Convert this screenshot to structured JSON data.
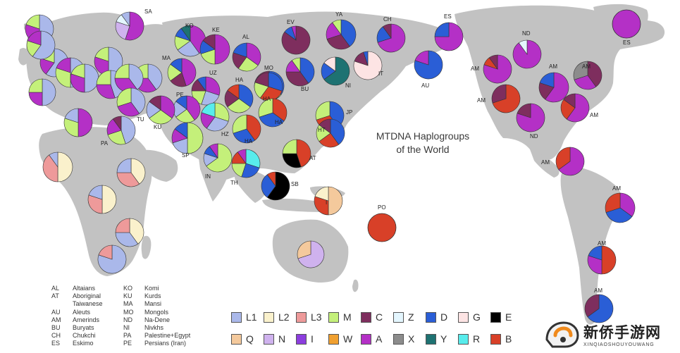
{
  "title": {
    "line1": "MTDNA Haplogroups",
    "line2": "of the World"
  },
  "colors": {
    "land": "#c2c2c2",
    "ocean": "#ffffff",
    "background": "#ffffff",
    "L1": "#aab8ea",
    "L2": "#faf1cc",
    "L3": "#ee9a9a",
    "M": "#c4f07a",
    "C": "#7e2e5e",
    "Z": "#e4f6fe",
    "D": "#2a5ed6",
    "G": "#fde4e4",
    "E": "#000000",
    "Q": "#f4c99c",
    "N": "#cfb2ee",
    "I": "#8c3ede",
    "W": "#f0a030",
    "A": "#b430c6",
    "X": "#8c8c8c",
    "Y": "#1e7272",
    "R": "#58ecec",
    "B": "#d84028"
  },
  "legend": {
    "row1": [
      {
        "code": "L1",
        "label": "L1"
      },
      {
        "code": "L2",
        "label": "L2"
      },
      {
        "code": "L3",
        "label": "L3"
      },
      {
        "code": "M",
        "label": "M"
      },
      {
        "code": "C",
        "label": "C"
      },
      {
        "code": "Z",
        "label": "Z"
      },
      {
        "code": "D",
        "label": "D"
      },
      {
        "code": "G",
        "label": "G"
      },
      {
        "code": "E",
        "label": "E"
      }
    ],
    "row2": [
      {
        "code": "Q",
        "label": "Q"
      },
      {
        "code": "N",
        "label": "N"
      },
      {
        "code": "I",
        "label": "I"
      },
      {
        "code": "W",
        "label": "W"
      },
      {
        "code": "A",
        "label": "A"
      },
      {
        "code": "X",
        "label": "X"
      },
      {
        "code": "Y",
        "label": "Y"
      },
      {
        "code": "R",
        "label": "R"
      },
      {
        "code": "B",
        "label": "B"
      }
    ]
  },
  "abbreviations": {
    "col1": [
      {
        "code": "AL",
        "name": "Altaians"
      },
      {
        "code": "AT",
        "name": "Aboriginal"
      },
      {
        "code": "",
        "name": "Taiwanese"
      },
      {
        "code": "AU",
        "name": "Aleuts"
      },
      {
        "code": "AM",
        "name": "Amerinds"
      },
      {
        "code": "BU",
        "name": "Buryats"
      },
      {
        "code": "CH",
        "name": "Chukchi"
      },
      {
        "code": "ES",
        "name": "Eskimo"
      }
    ],
    "col2": [
      {
        "code": "KO",
        "name": "Komi"
      },
      {
        "code": "KU",
        "name": "Kurds"
      },
      {
        "code": "MA",
        "name": "Mansi"
      },
      {
        "code": "MO",
        "name": "Mongols"
      },
      {
        "code": "ND",
        "name": "Na-Dene"
      },
      {
        "code": "NI",
        "name": "Nivkhs"
      },
      {
        "code": "PA",
        "name": "Palestine+Egypt"
      },
      {
        "code": "PE",
        "name": "Persians (Iran)"
      }
    ]
  },
  "populations": [
    {
      "label": "SA",
      "fractions": {
        "A": 0.55,
        "N": 0.25,
        "Z": 0.1,
        "L1": 0.1
      }
    },
    {
      "label": "KO",
      "fractions": {
        "A": 0.4,
        "L1": 0.25,
        "M": 0.15,
        "D": 0.1,
        "Y": 0.1
      }
    },
    {
      "label": "KE",
      "fractions": {
        "A": 0.5,
        "M": 0.2,
        "D": 0.15,
        "C": 0.15
      }
    },
    {
      "label": "AL",
      "fractions": {
        "A": 0.35,
        "M": 0.25,
        "C": 0.2,
        "D": 0.2
      }
    },
    {
      "label": "MA",
      "fractions": {
        "A": 0.45,
        "C": 0.2,
        "M": 0.2,
        "D": 0.15
      }
    },
    {
      "label": "UZ",
      "fractions": {
        "A": 0.3,
        "L1": 0.25,
        "M": 0.2,
        "C": 0.15,
        "D": 0.1
      }
    },
    {
      "label": "MO",
      "fractions": {
        "D": 0.35,
        "M": 0.3,
        "A": 0.2,
        "C": 0.15
      }
    },
    {
      "label": "BU",
      "fractions": {
        "D": 0.4,
        "C": 0.35,
        "A": 0.15,
        "M": 0.1
      }
    },
    {
      "label": "EV",
      "fractions": {
        "C": 0.85,
        "D": 0.1,
        "A": 0.05
      }
    },
    {
      "label": "YA",
      "fractions": {
        "D": 0.4,
        "C": 0.3,
        "A": 0.2,
        "M": 0.1
      }
    },
    {
      "label": "NI",
      "fractions": {
        "Y": 0.65,
        "D": 0.2,
        "G": 0.15
      }
    },
    {
      "label": "IT",
      "fractions": {
        "G": 0.8,
        "C": 0.15,
        "D": 0.05
      }
    },
    {
      "label": "CH",
      "fractions": {
        "A": 0.7,
        "D": 0.2,
        "C": 0.1
      }
    },
    {
      "label": "AU",
      "fractions": {
        "D": 0.8,
        "A": 0.2
      }
    },
    {
      "label": "ES",
      "fractions": {
        "A": 0.75,
        "D": 0.25
      }
    },
    {
      "label": "ND",
      "fractions": {
        "A": 0.9,
        "Z": 0.1
      }
    },
    {
      "label": "ES",
      "fractions": {
        "A": 1.0
      }
    },
    {
      "label": "PE",
      "fractions": {
        "A": 0.4,
        "M": 0.25,
        "L1": 0.2,
        "D": 0.15
      }
    },
    {
      "label": "KU",
      "fractions": {
        "A": 0.35,
        "M": 0.3,
        "L1": 0.2,
        "C": 0.15
      }
    },
    {
      "label": "TU",
      "fractions": {
        "L1": 0.4,
        "A": 0.3,
        "M": 0.3
      }
    },
    {
      "label": "PA",
      "fractions": {
        "L1": 0.45,
        "M": 0.25,
        "A": 0.2,
        "C": 0.1
      }
    },
    {
      "label": "SP",
      "fractions": {
        "M": 0.5,
        "L1": 0.2,
        "A": 0.15,
        "D": 0.15
      }
    },
    {
      "label": "HZ",
      "fractions": {
        "M": 0.3,
        "L1": 0.3,
        "A": 0.2,
        "R": 0.2
      }
    },
    {
      "label": "IN",
      "fractions": {
        "M": 0.65,
        "L1": 0.15,
        "D": 0.1,
        "A": 0.1
      }
    },
    {
      "label": "HA",
      "fractions": {
        "D": 0.35,
        "M": 0.3,
        "C": 0.2,
        "B": 0.15
      }
    },
    {
      "label": "HA",
      "fractions": {
        "D": 0.3,
        "B": 0.3,
        "M": 0.2,
        "C": 0.2
      }
    },
    {
      "label": "HA",
      "fractions": {
        "B": 0.35,
        "D": 0.35,
        "M": 0.3
      }
    },
    {
      "label": "HT",
      "fractions": {
        "D": 0.4,
        "B": 0.3,
        "M": 0.3
      }
    },
    {
      "label": "JP",
      "fractions": {
        "D": 0.4,
        "B": 0.25,
        "M": 0.2,
        "C": 0.15
      }
    },
    {
      "label": "HA",
      "fractions": {
        "B": 0.4,
        "D": 0.3,
        "M": 0.3
      }
    },
    {
      "label": "AT",
      "fractions": {
        "B": 0.45,
        "E": 0.3,
        "M": 0.25
      }
    },
    {
      "label": "TH",
      "fractions": {
        "R": 0.3,
        "D": 0.25,
        "M": 0.2,
        "B": 0.15,
        "A": 0.1
      }
    },
    {
      "label": "SB",
      "fractions": {
        "E": 0.6,
        "D": 0.3,
        "B": 0.1
      }
    },
    {
      "label": "I",
      "fractions": {
        "Q": 0.5,
        "B": 0.3,
        "L2": 0.2
      }
    },
    {
      "label": "PO",
      "fractions": {
        "B": 1.0
      }
    },
    {
      "label": "AM",
      "fractions": {
        "A": 0.8,
        "B": 0.1,
        "C": 0.1
      }
    },
    {
      "label": "AM",
      "fractions": {
        "A": 0.6,
        "C": 0.2,
        "D": 0.2
      }
    },
    {
      "label": "AM",
      "fractions": {
        "C": 0.4,
        "A": 0.3,
        "X": 0.3
      }
    },
    {
      "label": "AM",
      "fractions": {
        "B": 0.7,
        "C": 0.3
      }
    },
    {
      "label": "ND",
      "fractions": {
        "A": 0.8,
        "C": 0.2
      }
    },
    {
      "label": "AM",
      "fractions": {
        "A": 0.6,
        "B": 0.25,
        "C": 0.15
      }
    },
    {
      "label": "AM",
      "fractions": {
        "A": 0.65,
        "B": 0.35
      }
    },
    {
      "label": "AM",
      "fractions": {
        "A": 0.35,
        "D": 0.35,
        "B": 0.3
      }
    },
    {
      "label": "AM",
      "fractions": {
        "B": 0.5,
        "A": 0.3,
        "D": 0.2
      }
    },
    {
      "label": "AM",
      "fractions": {
        "D": 0.65,
        "C": 0.35
      }
    }
  ],
  "unlabeled_pies": [
    {
      "fractions": {
        "L1": 0.5,
        "A": 0.3,
        "M": 0.2
      }
    },
    {
      "fractions": {
        "L1": 0.6,
        "A": 0.2,
        "M": 0.2
      }
    },
    {
      "fractions": {
        "L1": 0.5,
        "M": 0.3,
        "A": 0.2
      }
    },
    {
      "fractions": {
        "L1": 0.5,
        "A": 0.3,
        "M": 0.2
      }
    },
    {
      "fractions": {
        "L1": 0.6,
        "M": 0.2,
        "A": 0.2
      }
    },
    {
      "fractions": {
        "L1": 0.5,
        "A": 0.25,
        "M": 0.25
      }
    },
    {
      "fractions": {
        "L1": 0.5,
        "A": 0.3,
        "M": 0.2
      }
    },
    {
      "fractions": {
        "L1": 0.45,
        "A": 0.3,
        "M": 0.25
      }
    },
    {
      "fractions": {
        "L1": 0.4,
        "A": 0.35,
        "M": 0.25
      }
    },
    {
      "fractions": {
        "L1": 0.4,
        "A": 0.35,
        "M": 0.25
      }
    },
    {
      "fractions": {
        "A": 0.5,
        "M": 0.3,
        "L1": 0.2
      }
    },
    {
      "fractions": {
        "L2": 0.5,
        "L3": 0.4,
        "L1": 0.1
      }
    },
    {
      "fractions": {
        "L2": 0.4,
        "L3": 0.35,
        "L1": 0.25
      }
    },
    {
      "fractions": {
        "L2": 0.5,
        "L3": 0.3,
        "L1": 0.2
      }
    },
    {
      "fractions": {
        "L2": 0.4,
        "L1": 0.35,
        "L3": 0.25
      }
    },
    {
      "fractions": {
        "L1": 0.8,
        "L3": 0.2
      }
    },
    {
      "fractions": {
        "N": 0.7,
        "Q": 0.3
      }
    }
  ],
  "watermark": {
    "brand": "新侨手游网",
    "site": "XINQIAOSHOUYOUWANG"
  }
}
